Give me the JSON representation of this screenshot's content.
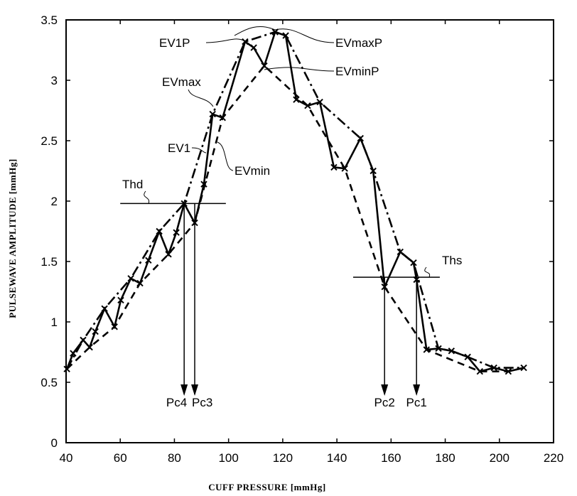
{
  "chart_data": {
    "type": "line",
    "title": "",
    "xlabel": "CUFF PRESSURE [mmHg]",
    "ylabel": "PULSEWAVE AMPLITUDE [mmHg]",
    "xlim": [
      40,
      220
    ],
    "ylim": [
      0,
      3.5
    ],
    "xticks": [
      "40",
      "60",
      "80",
      "100",
      "120",
      "140",
      "160",
      "180",
      "200",
      "220"
    ],
    "yticks": [
      "0",
      "0.5",
      "1",
      "1.5",
      "2",
      "2.5",
      "3",
      "3.5"
    ],
    "grid": false,
    "series": [
      {
        "style": "solid-with-x-markers",
        "x": [
          40.3,
          42.6,
          46.3,
          48.7,
          50.8,
          54.2,
          57.9,
          60.2,
          63.9,
          67.3,
          70.4,
          74.4,
          77.8,
          80.7,
          83.6,
          87.5,
          90.9,
          94.1,
          97.8,
          106.1,
          109.3,
          113.2,
          117.2,
          121.1,
          125.0,
          129.2,
          133.7,
          138.9,
          142.9,
          148.7,
          153.4,
          157.6,
          163.4,
          168.3,
          169.4,
          173.1,
          177.5,
          182.3,
          188.3,
          192.8,
          198.0,
          203.3,
          209.0
        ],
        "y": [
          0.61,
          0.74,
          0.85,
          0.79,
          0.92,
          1.11,
          0.96,
          1.18,
          1.36,
          1.32,
          1.51,
          1.75,
          1.56,
          1.74,
          1.98,
          1.82,
          2.14,
          2.72,
          2.69,
          3.32,
          3.27,
          3.12,
          3.4,
          3.37,
          2.84,
          2.79,
          2.82,
          2.28,
          2.27,
          2.52,
          2.25,
          1.29,
          1.58,
          1.49,
          1.35,
          0.77,
          0.78,
          0.76,
          0.71,
          0.59,
          0.62,
          0.59,
          0.62
        ]
      },
      {
        "name": "EVmax",
        "style": "dash-dot",
        "x": [
          40.3,
          46.3,
          54.2,
          63.9,
          74.4,
          83.6,
          94.1,
          106.1,
          117.2,
          121.1,
          133.7,
          148.7,
          153.4,
          163.4,
          168.3,
          177.5,
          182.3,
          188.3,
          198.0,
          209.0
        ],
        "y": [
          0.61,
          0.85,
          1.11,
          1.36,
          1.75,
          1.98,
          2.72,
          3.32,
          3.4,
          3.37,
          2.82,
          2.52,
          2.25,
          1.58,
          1.49,
          0.78,
          0.76,
          0.71,
          0.62,
          0.62
        ]
      },
      {
        "name": "EVmin",
        "style": "dashed",
        "x": [
          40.3,
          48.7,
          57.9,
          67.3,
          77.8,
          87.5,
          97.8,
          113.2,
          129.2,
          142.9,
          157.6,
          173.1,
          192.8,
          203.3,
          209.0
        ],
        "y": [
          0.61,
          0.79,
          0.96,
          1.32,
          1.56,
          1.82,
          2.69,
          3.12,
          2.79,
          2.27,
          1.29,
          0.77,
          0.59,
          0.59,
          0.62
        ]
      }
    ],
    "thresholds": [
      {
        "label": "Thd",
        "y": 1.98,
        "x_range": [
          60,
          99
        ]
      },
      {
        "label": "Ths",
        "y": 1.37,
        "x_range": [
          146,
          178
        ]
      }
    ],
    "markers": [
      {
        "label": "Pc4",
        "x": 83.6
      },
      {
        "label": "Pc3",
        "x": 87.5
      },
      {
        "label": "Pc2",
        "x": 157.6
      },
      {
        "label": "Pc1",
        "x": 169.4
      }
    ],
    "annotations": {
      "ev1p": "EV1P",
      "evmaxp": "EVmaxP",
      "evmax": "EVmax",
      "evminp": "EVminP",
      "ev1": "EV1",
      "evmin": "EVmin"
    }
  }
}
